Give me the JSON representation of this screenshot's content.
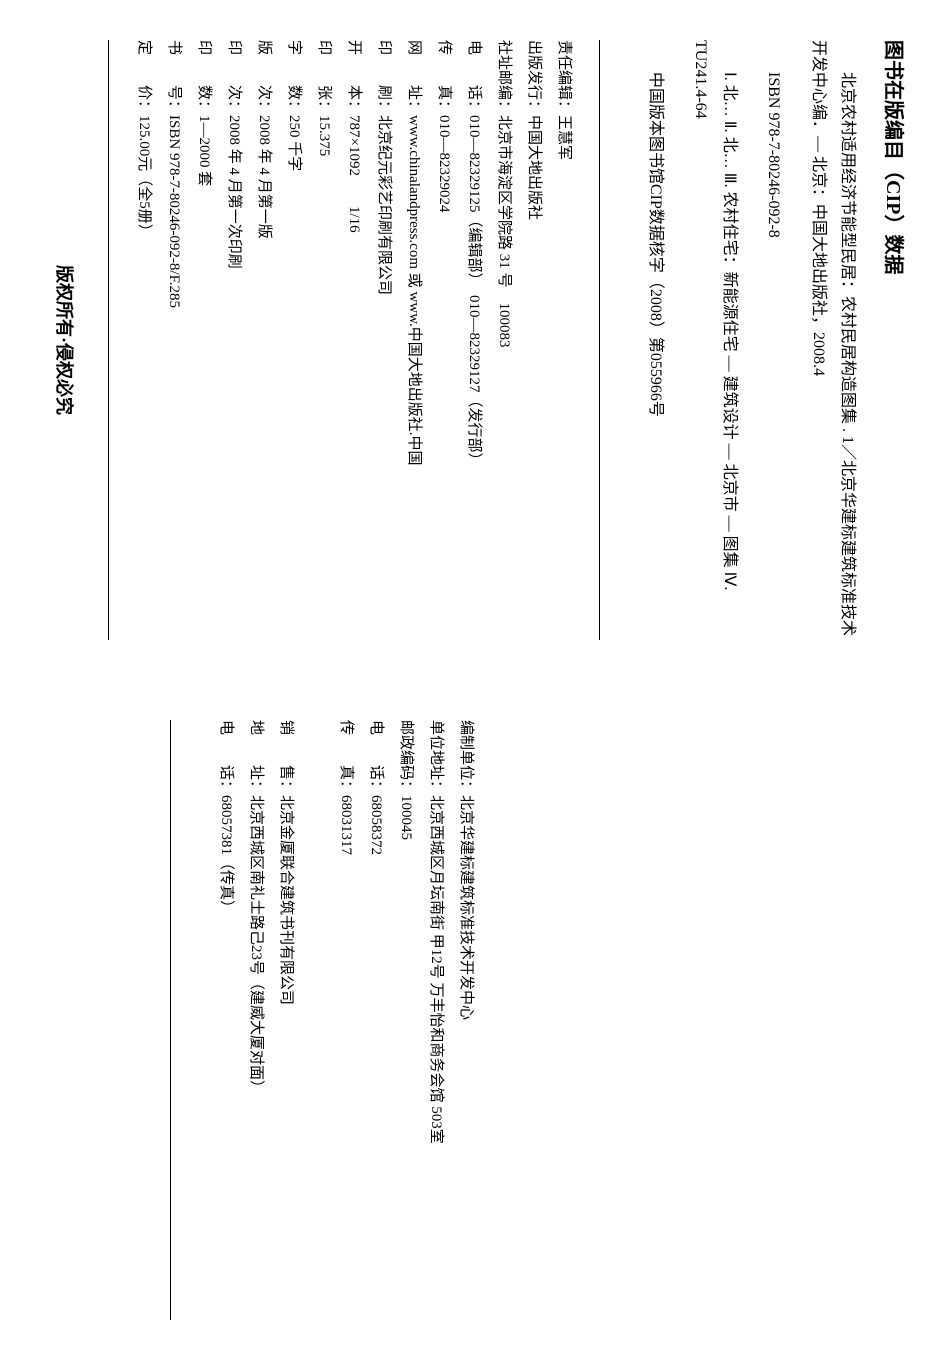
{
  "cip": {
    "title": "图书在版编目（CIP）数据",
    "body": "北京农村适用经济节能型民居：农村民居构造图集 . 1／北京华建标建筑标准技术开发中心编．— 北京：中国大地出版社，2008.4",
    "isbn": "ISBN 978-7-80246-092-8",
    "classification": "Ⅰ. 北… Ⅱ. 北… Ⅲ. 农村住宅：新能源住宅 — 建筑设计 — 北京市 — 图集 Ⅳ. TU241.4-64",
    "cip_number": "中国版本图书馆CIP数据核字（2008）第055966号"
  },
  "colophon": {
    "editor_label": "责任编辑：",
    "editor": "王慧军",
    "publisher_label": "出版发行：",
    "publisher": "中国大地出版社",
    "address_label": "社址邮编：",
    "address": "北京市海淀区学院路 31 号　100083",
    "tel_label": "电　　话：",
    "tel": "010—82329125（编辑部）　010—82329127（发行部）",
    "fax_label": "传　　真：",
    "fax": "010—82329024",
    "web_label": "网　　址：",
    "web": "www.chinalandpress.com 或 www.中国大地出版社.中国",
    "printer_label": "印　　刷：",
    "printer": "北京纪元彩艺印刷有限公司",
    "format_label": "开　　本：",
    "format": "787×1092　　1/16",
    "sheets_label": "印　　张：",
    "sheets": "15.375",
    "words_label": "字　　数：",
    "words": "250 千字",
    "edition_label": "版　　次：",
    "edition": "2008 年 4 月第一版",
    "impression_label": "印　　次：",
    "impression": "2008 年 4 月第一次印刷",
    "print_run_label": "印　　数：",
    "print_run": "1—2000 套",
    "book_number_label": "书　　号：",
    "book_number": "ISBN 978-7-80246-092-8/F.285",
    "price_label": "定　　价：",
    "price": "125.00元（全5册）"
  },
  "copyright": "版权所有·侵权必究",
  "compiler": {
    "unit_label": "编制单位：",
    "unit": "北京华建标建筑标准技术开发中心",
    "address_label": "单位地址：",
    "address": "北京西城区月坛南街 甲12号 万丰怡和商务会馆 503室",
    "postcode_label": "邮政编码：",
    "postcode": "100045",
    "tel_label": "电　　话：",
    "tel": "68058372",
    "fax_label": "传　　真：",
    "fax": "68031317"
  },
  "sales": {
    "seller_label": "销　　售：",
    "seller": "北京金厦联合建筑书刊有限公司",
    "address_label": "地　　址：",
    "address": "北京西城区南礼士路己23号（建威大厦对面）",
    "tel_label": "电　　话：",
    "tel": "68057381（传真）"
  }
}
